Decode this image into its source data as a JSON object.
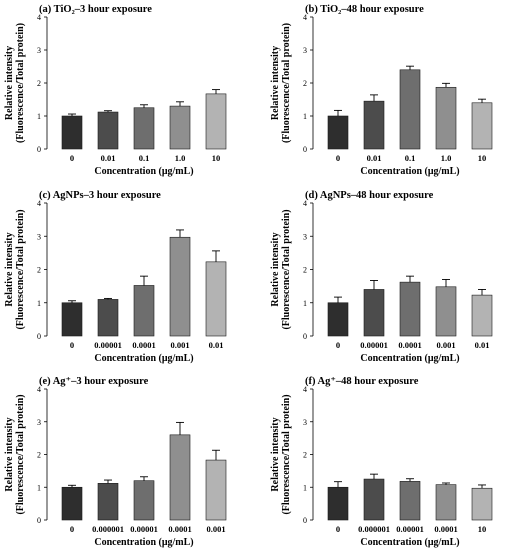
{
  "chart_data": [
    {
      "type": "bar",
      "title": "(a) TiO₂–3 hour exposure",
      "ylabel": [
        "Relative intensity",
        "(Fluorescence/Total protein)"
      ],
      "xlabel": "Concentration (μg/mL)",
      "ylim": [
        0,
        4
      ],
      "yticks": [
        0,
        1,
        2,
        3,
        4
      ],
      "categories": [
        "0",
        "0.01",
        "0.1",
        "1.0",
        "10"
      ],
      "values": [
        1.0,
        1.12,
        1.25,
        1.3,
        1.67
      ],
      "errors": [
        0.06,
        0.04,
        0.09,
        0.13,
        0.13
      ],
      "colors": [
        "#2e2e2e",
        "#4c4c4c",
        "#6e6e6e",
        "#8f8f8f",
        "#b3b3b3"
      ]
    },
    {
      "type": "bar",
      "title": "(b) TiO₂–48 hour exposure",
      "ylabel": [
        "Relative intensity",
        "(Fluorescence/Total protein)"
      ],
      "xlabel": "Concentration (μg/mL)",
      "ylim": [
        0,
        4
      ],
      "yticks": [
        0,
        1,
        2,
        3,
        4
      ],
      "categories": [
        "0",
        "0.01",
        "0.1",
        "1.0",
        "10"
      ],
      "values": [
        1.0,
        1.45,
        2.4,
        1.87,
        1.4
      ],
      "errors": [
        0.17,
        0.19,
        0.11,
        0.12,
        0.11
      ],
      "colors": [
        "#2e2e2e",
        "#4c4c4c",
        "#6e6e6e",
        "#8f8f8f",
        "#b3b3b3"
      ]
    },
    {
      "type": "bar",
      "title": "(c) AgNPs–3 hour exposure",
      "ylabel": [
        "Relative intensity",
        "(Fluorescence/Total protein)"
      ],
      "xlabel": "Concentration (μg/mL)",
      "ylim": [
        0,
        4
      ],
      "yticks": [
        0,
        1,
        2,
        3,
        4
      ],
      "categories": [
        "0",
        "0.00001",
        "0.0001",
        "0.001",
        "0.01"
      ],
      "values": [
        1.0,
        1.1,
        1.52,
        2.97,
        2.23
      ],
      "errors": [
        0.06,
        0.03,
        0.28,
        0.22,
        0.33
      ],
      "colors": [
        "#2e2e2e",
        "#4c4c4c",
        "#6e6e6e",
        "#8f8f8f",
        "#b3b3b3"
      ]
    },
    {
      "type": "bar",
      "title": "(d) AgNPs–48 hour exposure",
      "ylabel": [
        "Relative intensity",
        "(Fluorescence/Total protein)"
      ],
      "xlabel": "Concentration (μg/mL)",
      "ylim": [
        0,
        4
      ],
      "yticks": [
        0,
        1,
        2,
        3,
        4
      ],
      "categories": [
        "0",
        "0.00001",
        "0.0001",
        "0.001",
        "0.01"
      ],
      "values": [
        1.0,
        1.4,
        1.62,
        1.48,
        1.23
      ],
      "errors": [
        0.17,
        0.27,
        0.18,
        0.22,
        0.17
      ],
      "colors": [
        "#2e2e2e",
        "#4c4c4c",
        "#6e6e6e",
        "#8f8f8f",
        "#b3b3b3"
      ]
    },
    {
      "type": "bar",
      "title": "(e) Ag⁺–3 hour exposure",
      "ylabel": [
        "Relative intensity",
        "(Fluorescence/Total protein)"
      ],
      "xlabel": "Concentration (μg/mL)",
      "ylim": [
        0,
        4
      ],
      "yticks": [
        0,
        1,
        2,
        3,
        4
      ],
      "categories": [
        "0",
        "0.000001",
        "0.00001",
        "0.0001",
        "0.001"
      ],
      "values": [
        1.0,
        1.12,
        1.2,
        2.6,
        1.83
      ],
      "errors": [
        0.06,
        0.1,
        0.12,
        0.38,
        0.3
      ],
      "colors": [
        "#2e2e2e",
        "#4c4c4c",
        "#6e6e6e",
        "#8f8f8f",
        "#b3b3b3"
      ]
    },
    {
      "type": "bar",
      "title": "(f) Ag⁺–48 hour exposure",
      "ylabel": [
        "Relative intensity",
        "(Fluorescence/Total protein)"
      ],
      "xlabel": "Concentration (μg/mL)",
      "ylim": [
        0,
        4
      ],
      "yticks": [
        0,
        1,
        2,
        3,
        4
      ],
      "categories": [
        "0",
        "0.000001",
        "0.00001",
        "0.0001",
        "10"
      ],
      "values": [
        1.0,
        1.25,
        1.18,
        1.08,
        0.97
      ],
      "errors": [
        0.17,
        0.15,
        0.08,
        0.05,
        0.1
      ],
      "colors": [
        "#2e2e2e",
        "#4c4c4c",
        "#6e6e6e",
        "#8f8f8f",
        "#b3b3b3"
      ]
    }
  ]
}
